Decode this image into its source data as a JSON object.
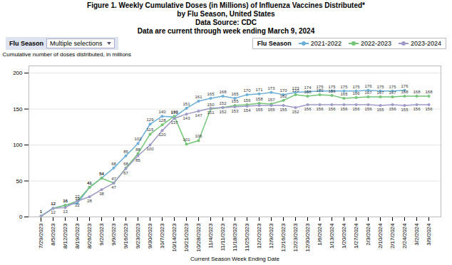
{
  "chart_data": {
    "type": "line",
    "title": [
      "Figure 1. Weekly Cumulative Doses (in Millions) of Influenza Vaccines Distributed*",
      "by Flu Season, United States"
    ],
    "subtitle": [
      "Data Source: CDC",
      "Data are current through week ending March 9, 2024"
    ],
    "x_label": "Current Season Week Ending Date",
    "y_label": "Cumulative number of doses distributed, in millions",
    "categories": [
      "7/29/2023",
      "8/5/2023",
      "8/12/2023",
      "8/19/2023",
      "8/26/2023",
      "9/2/2023",
      "9/9/2023",
      "9/16/2023",
      "9/23/2023",
      "9/30/2023",
      "10/7/2023",
      "10/14/2023",
      "10/21/2023",
      "10/28/2023",
      "11/4/2023",
      "11/11/2023",
      "11/18/2023",
      "11/25/2023",
      "12/2/2023",
      "12/9/2023",
      "12/16/2023",
      "12/23/2023",
      "12/30/2023",
      "1/6/2024",
      "1/13/2024",
      "1/20/2024",
      "1/27/2024",
      "2/3/2024",
      "2/10/2024",
      "2/17/2024",
      "2/24/2024",
      "3/2/2024",
      "3/9/2024"
    ],
    "series": [
      {
        "name": "2021-2022",
        "color": "#6baed6",
        "values": [
          1,
          12,
          16,
          19,
          41,
          54,
          68,
          85,
          102,
          129,
          140,
          139,
          151,
          161,
          165,
          168,
          165,
          170,
          171,
          173,
          170,
          173,
          174,
          175,
          175,
          175,
          175,
          176,
          175,
          175,
          176,
          null,
          null
        ]
      },
      {
        "name": "2022-2023",
        "color": "#74c476",
        "values": [
          1,
          12,
          16,
          22,
          41,
          54,
          47,
          68,
          88,
          115,
          128,
          140,
          101,
          106,
          150,
          152,
          155,
          156,
          158,
          157,
          162,
          170,
          168,
          170,
          169,
          165,
          166,
          167,
          167,
          167,
          168,
          168,
          168
        ]
      },
      {
        "name": "2023-2024",
        "color": "#9e9ac8",
        "values": [
          1,
          12,
          13,
          22,
          28,
          38,
          47,
          67,
          85,
          100,
          120,
          137,
          143,
          147,
          151,
          152,
          153,
          154,
          155,
          155,
          155,
          152,
          156,
          156,
          156,
          156,
          156,
          156,
          155,
          156,
          155,
          156,
          156
        ]
      }
    ],
    "ylim": [
      0,
      210
    ],
    "yticks": [
      0,
      50,
      100,
      150,
      200
    ],
    "grid": true,
    "legend": "upper right",
    "legend_title": "Flu Season",
    "data_labels": true,
    "marker": "circle",
    "annotations": [
      {
        "text": "Flu Season"
      },
      {
        "text": "Multiple selections"
      }
    ]
  }
}
